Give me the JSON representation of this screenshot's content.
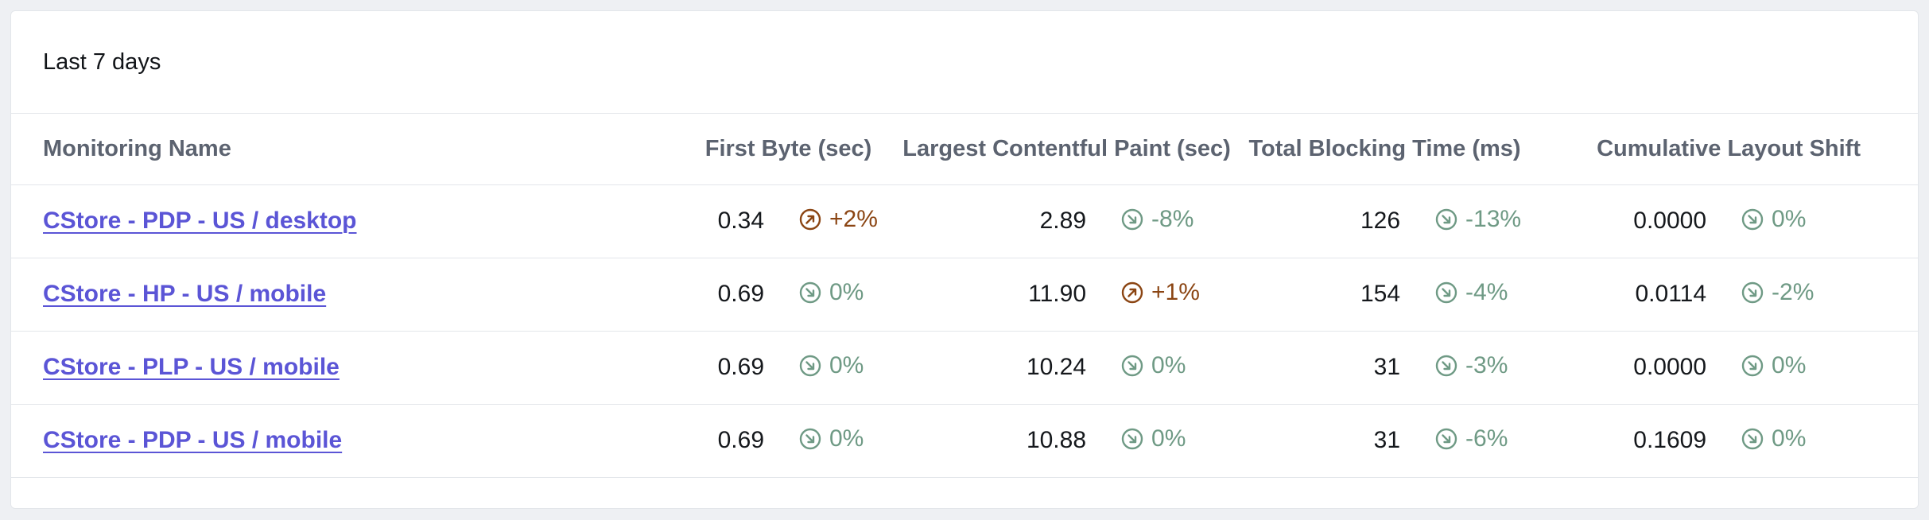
{
  "period_label": "Last 7 days",
  "columns": {
    "name": "Monitoring Name",
    "first_byte": "First Byte (sec)",
    "lcp": "Largest Contentful Paint (sec)",
    "tbt": "Total Blocking Time (ms)",
    "cls": "Cumulative Layout Shift"
  },
  "colors": {
    "link": "#5b55d6",
    "improve": "#6f9a85",
    "regress": "#8b4513"
  },
  "icons": {
    "improve": "arrow-down-right-circle-icon",
    "regress": "arrow-up-right-circle-icon"
  },
  "rows": [
    {
      "name": "CStore - PDP - US / desktop",
      "first_byte": {
        "value": "0.34",
        "change": "+2%",
        "trend": "regress"
      },
      "lcp": {
        "value": "2.89",
        "change": "-8%",
        "trend": "improve"
      },
      "tbt": {
        "value": "126",
        "change": "-13%",
        "trend": "improve"
      },
      "cls": {
        "value": "0.0000",
        "change": "0%",
        "trend": "improve"
      }
    },
    {
      "name": "CStore - HP - US / mobile",
      "first_byte": {
        "value": "0.69",
        "change": "0%",
        "trend": "improve"
      },
      "lcp": {
        "value": "11.90",
        "change": "+1%",
        "trend": "regress"
      },
      "tbt": {
        "value": "154",
        "change": "-4%",
        "trend": "improve"
      },
      "cls": {
        "value": "0.0114",
        "change": "-2%",
        "trend": "improve"
      }
    },
    {
      "name": "CStore - PLP - US / mobile",
      "first_byte": {
        "value": "0.69",
        "change": "0%",
        "trend": "improve"
      },
      "lcp": {
        "value": "10.24",
        "change": "0%",
        "trend": "improve"
      },
      "tbt": {
        "value": "31",
        "change": "-3%",
        "trend": "improve"
      },
      "cls": {
        "value": "0.0000",
        "change": "0%",
        "trend": "improve"
      }
    },
    {
      "name": "CStore - PDP - US / mobile",
      "first_byte": {
        "value": "0.69",
        "change": "0%",
        "trend": "improve"
      },
      "lcp": {
        "value": "10.88",
        "change": "0%",
        "trend": "improve"
      },
      "tbt": {
        "value": "31",
        "change": "-6%",
        "trend": "improve"
      },
      "cls": {
        "value": "0.1609",
        "change": "0%",
        "trend": "improve"
      }
    }
  ]
}
